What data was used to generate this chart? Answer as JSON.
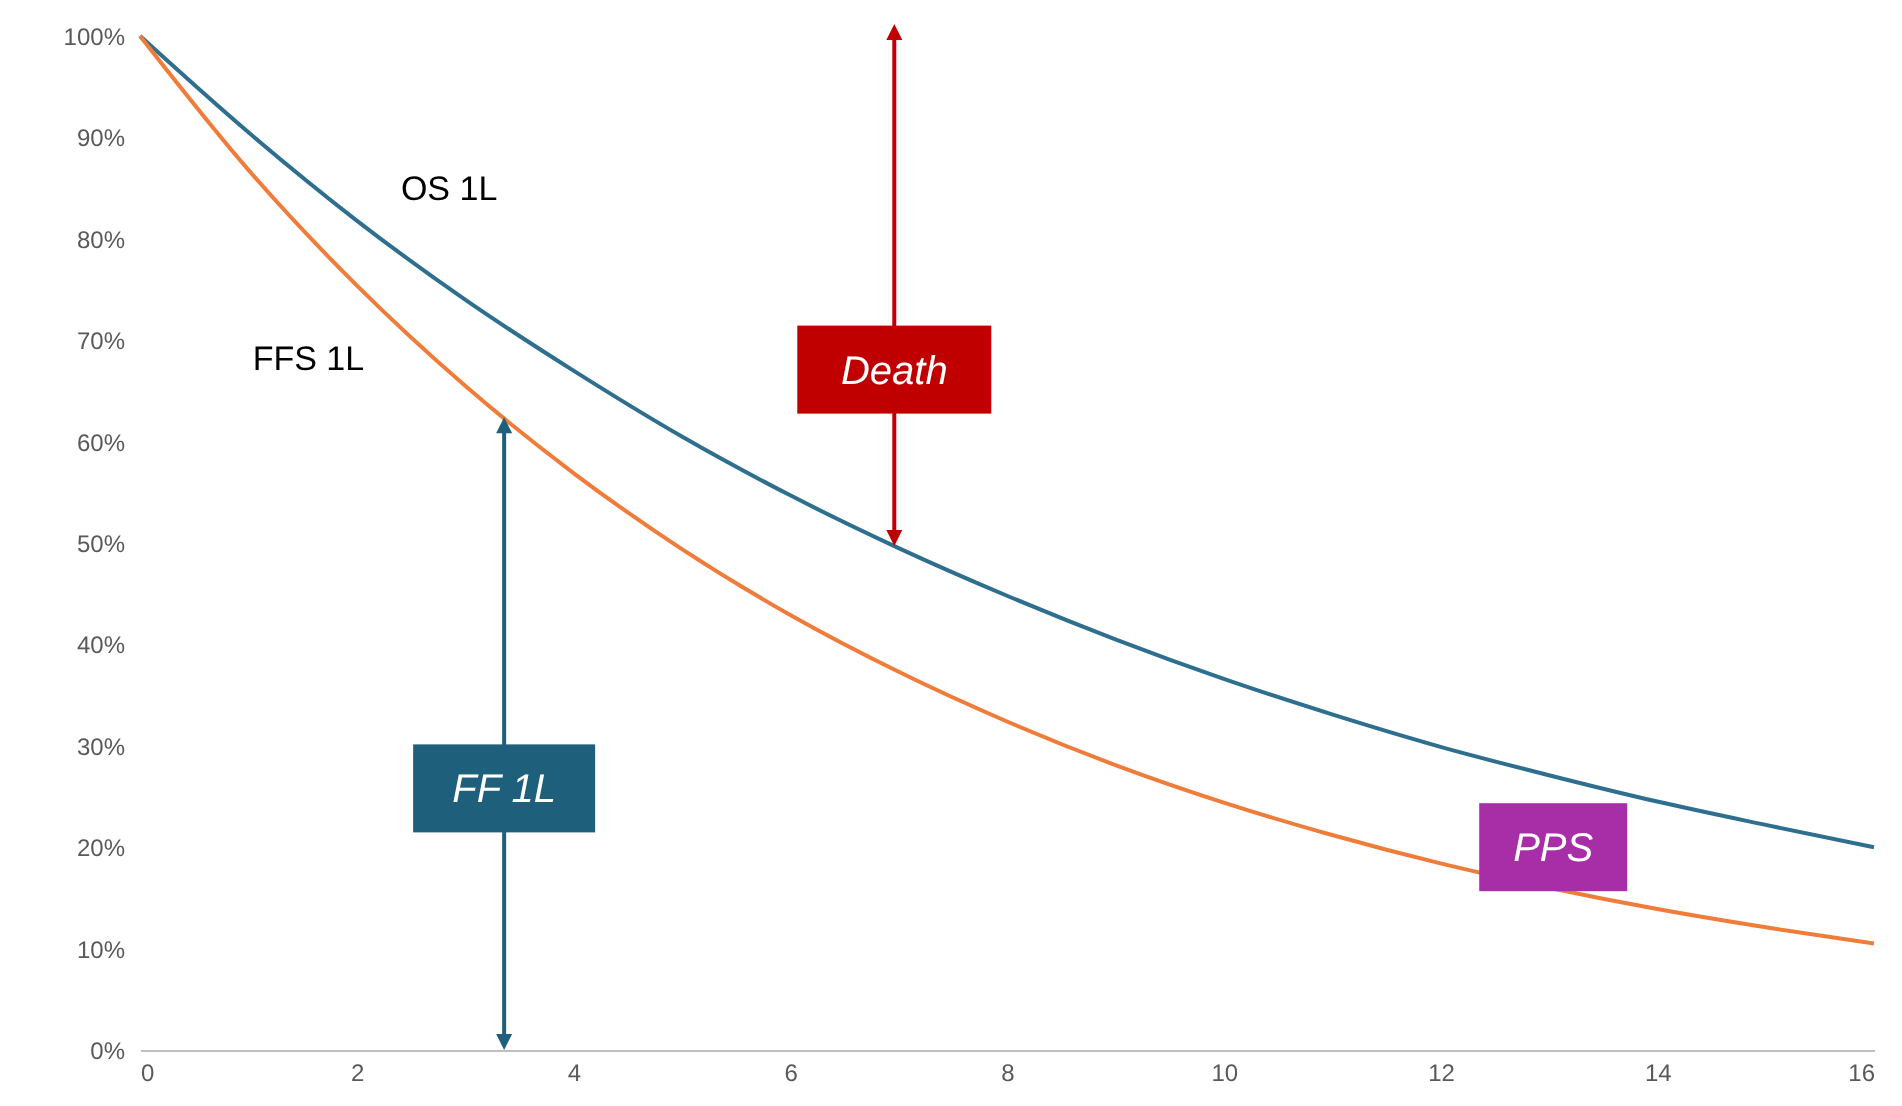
{
  "chart_data": {
    "type": "line",
    "x": [
      0,
      1,
      2,
      3,
      4,
      5,
      6,
      7,
      8,
      9,
      10,
      11,
      12,
      13,
      14,
      15,
      16
    ],
    "series": [
      {
        "name": "OS 1L",
        "color": "#2e6e8e",
        "values": [
          100,
          90.5,
          81.8,
          74,
          67,
          60.5,
          54.7,
          49.5,
          44.8,
          40.5,
          36.6,
          33.1,
          29.9,
          27.1,
          24.5,
          22.2,
          20
        ]
      },
      {
        "name": "FFS 1L",
        "color": "#f07c3a",
        "values": [
          100,
          86.8,
          75.4,
          65.5,
          56.9,
          49.4,
          42.9,
          37.3,
          32.4,
          28.1,
          24.4,
          21.2,
          18.4,
          16,
          13.9,
          12.1,
          10.5
        ]
      }
    ],
    "xlim": [
      0,
      16
    ],
    "xticks": [
      0,
      2,
      4,
      6,
      8,
      10,
      12,
      14,
      16
    ],
    "ylim": [
      0,
      100
    ],
    "yticks": [
      {
        "value": 0,
        "label": "0%"
      },
      {
        "value": 10,
        "label": "10%"
      },
      {
        "value": 20,
        "label": "20%"
      },
      {
        "value": 30,
        "label": "30%"
      },
      {
        "value": 40,
        "label": "40%"
      },
      {
        "value": 50,
        "label": "50%"
      },
      {
        "value": 60,
        "label": "60%"
      },
      {
        "value": 70,
        "label": "70%"
      },
      {
        "value": 80,
        "label": "80%"
      },
      {
        "value": 90,
        "label": "90%"
      },
      {
        "value": 100,
        "label": "100%"
      }
    ],
    "annotations": [
      "Death",
      "FF 1L",
      "PPS"
    ],
    "grid": false,
    "legend": false,
    "marker": "none",
    "line_style": "solid"
  }
}
